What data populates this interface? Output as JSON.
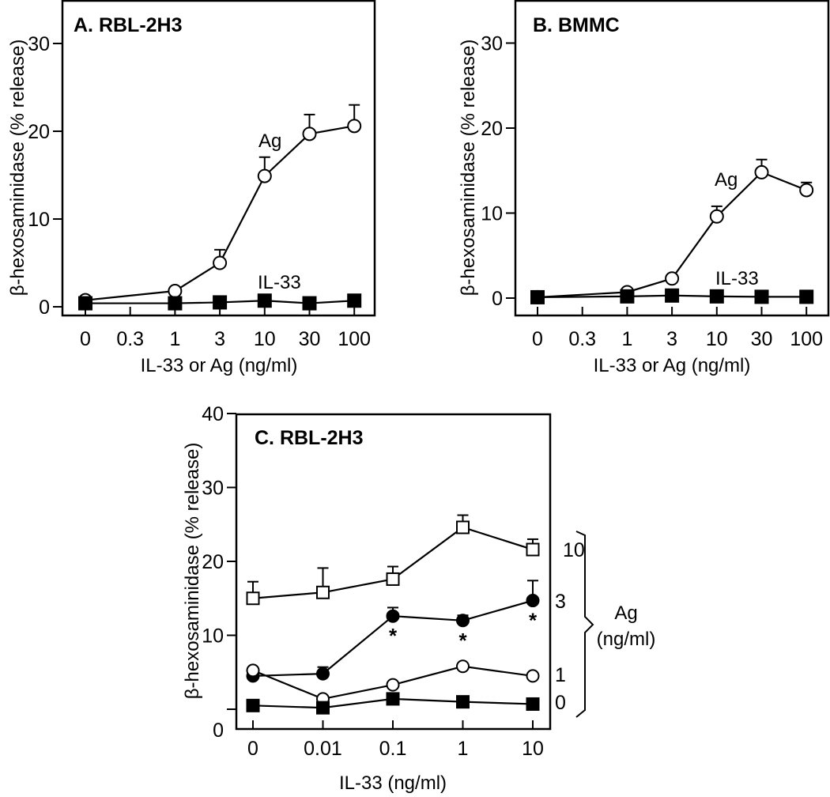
{
  "chart_data": [
    {
      "type": "line",
      "title": "A. RBL-2H3",
      "xlabel": "IL-33 or Ag (ng/ml)",
      "ylabel": "β-hexosaminidase (% release)",
      "categories": [
        "0",
        "0.3",
        "1",
        "3",
        "10",
        "30",
        "100"
      ],
      "ylim": [
        -1,
        36
      ],
      "yticks": [
        "0",
        "10",
        "20",
        "30"
      ],
      "series": [
        {
          "name": "Ag",
          "marker": "open-circle",
          "values": [
            0.75,
            null,
            1.8,
            5.0,
            14.9,
            19.7,
            20.6
          ],
          "error_top": [
            null,
            null,
            null,
            6.5,
            17.05,
            21.9,
            23.0
          ]
        },
        {
          "name": "IL-33",
          "marker": "filled-square",
          "values": [
            0.4,
            null,
            0.4,
            0.5,
            0.7,
            0.4,
            0.7
          ],
          "error_top": [
            null,
            null,
            null,
            null,
            null,
            null,
            null
          ]
        }
      ],
      "annotations": []
    },
    {
      "type": "line",
      "title": "B. BMMC",
      "xlabel": "IL-33 or Ag (ng/ml)",
      "ylabel": "β-hexosaminidase (% release)",
      "categories": [
        "0",
        "0.3",
        "1",
        "3",
        "10",
        "30",
        "100"
      ],
      "ylim": [
        -2,
        35
      ],
      "yticks": [
        "0",
        "10",
        "20",
        "30"
      ],
      "series": [
        {
          "name": "Ag",
          "marker": "open-circle",
          "values": [
            0.1,
            null,
            0.7,
            2.3,
            9.6,
            14.8,
            12.7
          ],
          "error_top": [
            null,
            null,
            null,
            null,
            10.8,
            16.3,
            13.6
          ]
        },
        {
          "name": "IL-33",
          "marker": "filled-square",
          "values": [
            0.1,
            null,
            0.2,
            0.3,
            0.2,
            0.15,
            0.15
          ],
          "error_top": [
            null,
            null,
            null,
            null,
            null,
            null,
            null
          ]
        }
      ],
      "annotations": []
    },
    {
      "type": "line",
      "title": "C. RBL-2H3",
      "xlabel": "IL-33 (ng/ml)",
      "ylabel": "β-hexosaminidase (% release)",
      "categories": [
        "0",
        "0.01",
        "0.1",
        "1",
        "10"
      ],
      "ylim": [
        -2.7,
        40
      ],
      "yticks": [
        "0",
        "10",
        "20",
        "30",
        "40"
      ],
      "series": [
        {
          "name": "10",
          "marker": "open-square",
          "values": [
            15.0,
            15.8,
            17.6,
            24.6,
            21.6
          ],
          "error_top": [
            17.25,
            19.1,
            19.3,
            26.25,
            23.0
          ]
        },
        {
          "name": "3",
          "marker": "filled-circle",
          "values": [
            4.5,
            4.8,
            12.6,
            12.0,
            14.7
          ],
          "error_top": [
            null,
            5.7,
            13.75,
            12.7,
            17.4
          ]
        },
        {
          "name": "1",
          "marker": "open-circle",
          "values": [
            5.25,
            1.4,
            3.3,
            5.8,
            4.5
          ],
          "error_top": [
            null,
            null,
            null,
            null,
            null
          ]
        },
        {
          "name": "0",
          "marker": "filled-square",
          "values": [
            0.5,
            0.2,
            1.4,
            1.0,
            0.7
          ],
          "error_top": [
            null,
            null,
            null,
            null,
            null
          ]
        }
      ],
      "annotations": [
        {
          "series": "3",
          "category": "0.1",
          "text": "*"
        },
        {
          "series": "3",
          "category": "1",
          "text": "*"
        },
        {
          "series": "3",
          "category": "10",
          "text": "*"
        }
      ],
      "legend_group": {
        "title": "Ag",
        "units": "(ng/ml)",
        "labels": [
          "10",
          "3",
          "1",
          "0"
        ]
      }
    }
  ],
  "series_labels": {
    "a_ag": "Ag",
    "a_il33": "IL-33",
    "b_ag": "Ag",
    "b_il33": "IL-33"
  }
}
